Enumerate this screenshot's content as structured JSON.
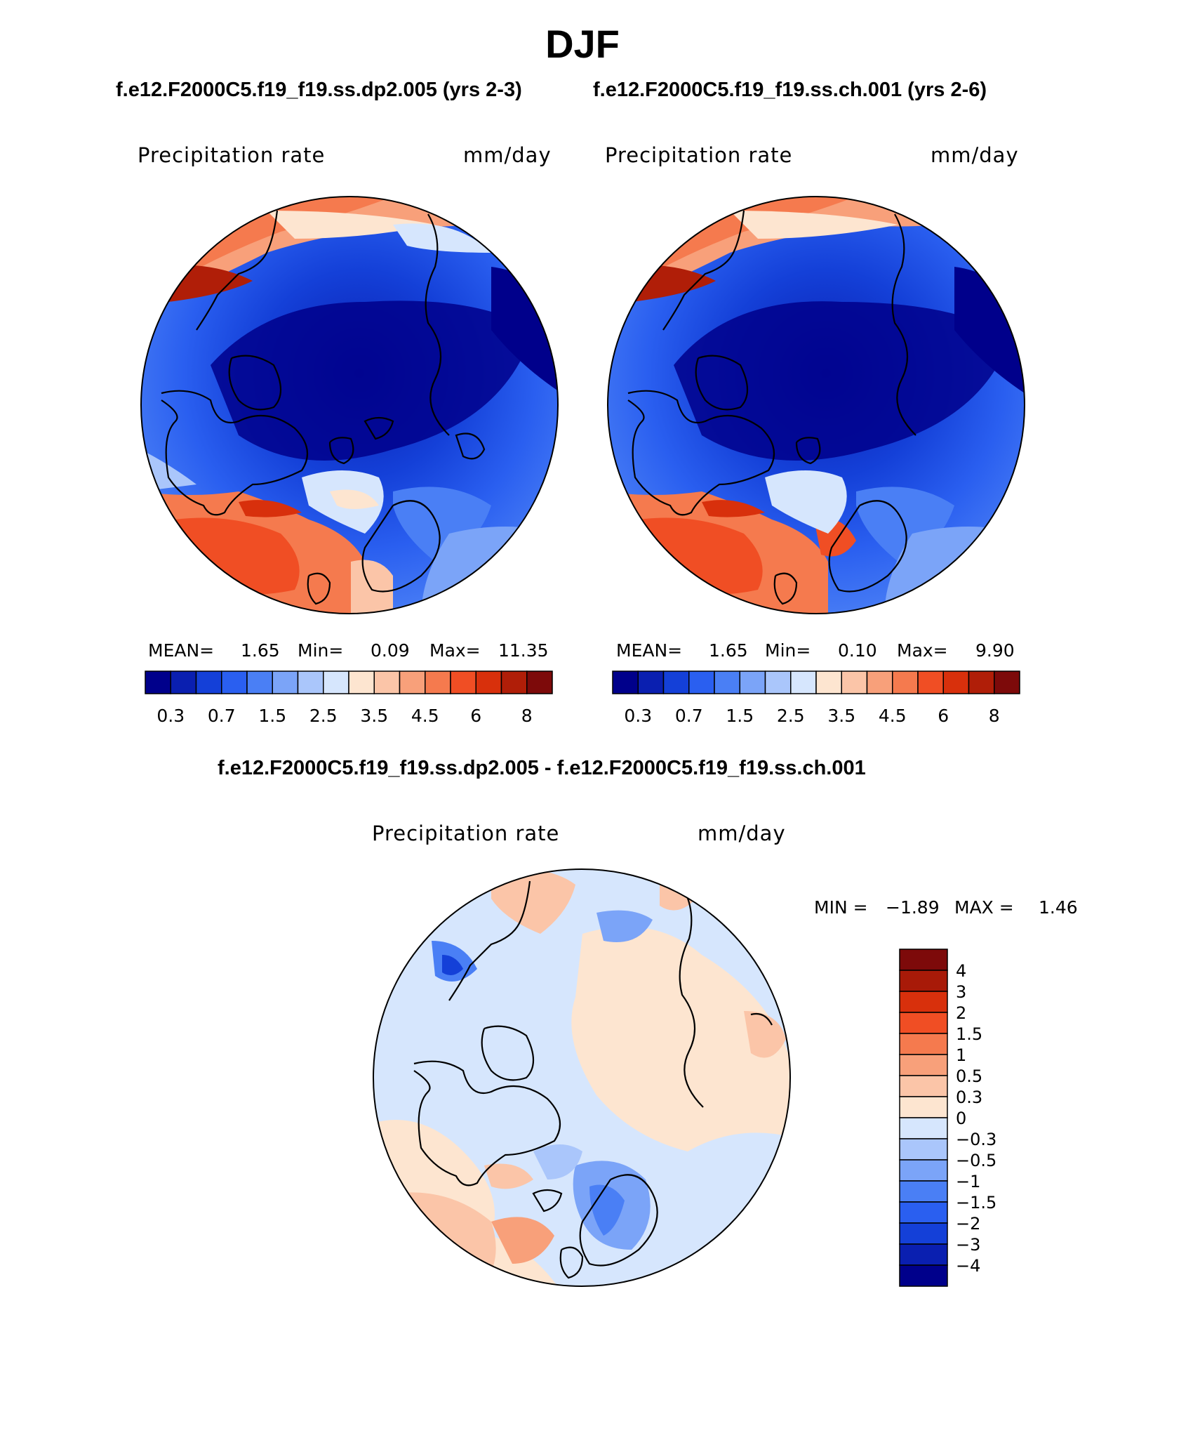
{
  "figure_title": "DJF",
  "panel_a": {
    "case_title": "f.e12.F2000C5.f19_f19.ss.dp2.005 (yrs 2-3)",
    "variable": "Precipitation rate",
    "units": "mm/day",
    "stats": {
      "mean_label": "MEAN=",
      "mean": "1.65",
      "min_label": "Min=",
      "min": "0.09",
      "max_label": "Max=",
      "max": "11.35"
    }
  },
  "panel_b": {
    "case_title": "f.e12.F2000C5.f19_f19.ss.ch.001 (yrs 2-6)",
    "variable": "Precipitation rate",
    "units": "mm/day",
    "stats": {
      "mean_label": "MEAN=",
      "mean": "1.65",
      "min_label": "Min=",
      "min": "0.10",
      "max_label": "Max=",
      "max": "9.90"
    }
  },
  "abs_colorbar": {
    "colors": [
      "#00008b",
      "#0a1fb0",
      "#1440d8",
      "#2a5ff0",
      "#4a7ff5",
      "#7ba4f8",
      "#aac6fb",
      "#d6e6fd",
      "#fde5d0",
      "#fbc5a8",
      "#f8a07a",
      "#f57a4e",
      "#f04e24",
      "#d8300c",
      "#b01e08",
      "#7d0a0a"
    ],
    "tick_labels": [
      "0.3",
      "0.7",
      "1.5",
      "2.5",
      "3.5",
      "4.5",
      "6",
      "8"
    ]
  },
  "diff_panel": {
    "title": "f.e12.F2000C5.f19_f19.ss.dp2.005 - f.e12.F2000C5.f19_f19.ss.ch.001",
    "variable": "Precipitation rate",
    "units": "mm/day",
    "min_label": "MIN =",
    "min": "−1.89",
    "max_label": "MAX =",
    "max": "1.46",
    "colorbar": {
      "colors": [
        "#7d0a0a",
        "#a81a08",
        "#d8300c",
        "#f04e24",
        "#f57a4e",
        "#f8a07a",
        "#fbc5a8",
        "#fde5d0",
        "#d6e6fd",
        "#aac6fb",
        "#7ba4f8",
        "#4a7ff5",
        "#2a5ff0",
        "#1440d8",
        "#0a1fb0",
        "#00008b"
      ],
      "tick_labels": [
        "4",
        "3",
        "2",
        "1.5",
        "1",
        "0.5",
        "0.3",
        "0",
        "−0.3",
        "−0.5",
        "−1",
        "−1.5",
        "−2",
        "−3",
        "−4"
      ]
    }
  }
}
